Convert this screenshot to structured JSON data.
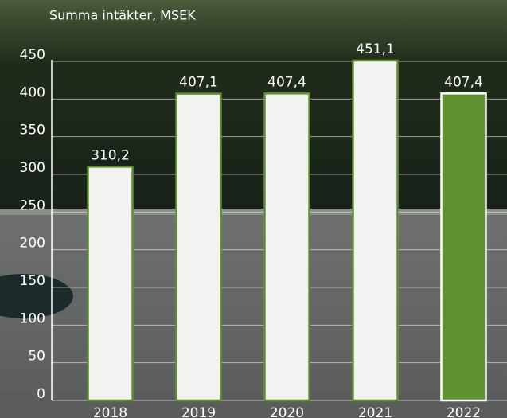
{
  "chart_data": {
    "type": "bar",
    "title": "Summa intäkter, MSEK",
    "categories": [
      "2018",
      "2019",
      "2020",
      "2021",
      "2022"
    ],
    "values": [
      310.2,
      407.1,
      407.4,
      451.1,
      407.4
    ],
    "value_labels": [
      "310,2",
      "407,1",
      "407,4",
      "451,1",
      "407,4"
    ],
    "colors": [
      "#f2f2f0",
      "#f2f2f0",
      "#f2f2f0",
      "#f2f2f0",
      "#5f9130"
    ],
    "edge_colors": [
      "#5f9130",
      "#5f9130",
      "#5f9130",
      "#5f9130",
      "#ffffff"
    ],
    "ylim": [
      0,
      450
    ],
    "yticks": [
      0,
      50,
      100,
      150,
      200,
      250,
      300,
      350,
      400,
      450
    ],
    "grid": true
  }
}
